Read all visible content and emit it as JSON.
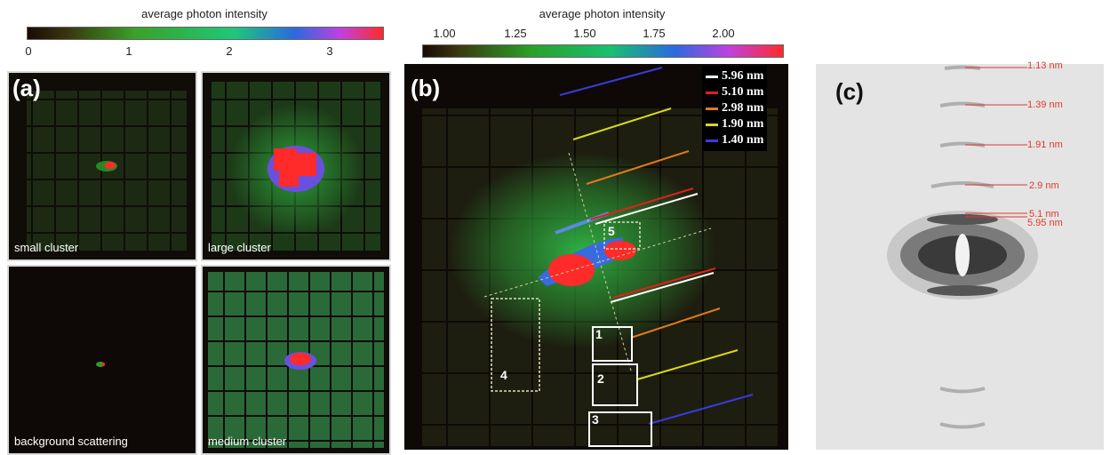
{
  "colorbar_a": {
    "title": "average photon intensity",
    "ticks": [
      {
        "label": "0",
        "value": 0
      },
      {
        "label": "1",
        "value": 1
      },
      {
        "label": "2",
        "value": 2
      },
      {
        "label": "3",
        "value": 3
      }
    ],
    "range": [
      0,
      3.6
    ]
  },
  "colorbar_b": {
    "title": "average photon intensity",
    "ticks": [
      {
        "label": "1.00",
        "value": 1.0
      },
      {
        "label": "1.25",
        "value": 1.25
      },
      {
        "label": "1.50",
        "value": 1.5
      },
      {
        "label": "1.75",
        "value": 1.75
      },
      {
        "label": "2.00",
        "value": 2.0
      }
    ],
    "range": [
      1.0,
      2.2
    ]
  },
  "panel_a": {
    "letter": "(a)",
    "labels": {
      "small": "small cluster",
      "large": "large cluster",
      "background": "background scattering",
      "medium": "medium cluster"
    }
  },
  "panel_b": {
    "letter": "(b)",
    "legend": [
      {
        "label": "5.96 nm",
        "color": "#ffffff"
      },
      {
        "label": "5.10 nm",
        "color": "#e0201a"
      },
      {
        "label": "2.98 nm",
        "color": "#e07a1e"
      },
      {
        "label": "1.90 nm",
        "color": "#d8d81e"
      },
      {
        "label": "1.40 nm",
        "color": "#3a3ae0"
      }
    ],
    "roi_labels": [
      "1",
      "2",
      "3",
      "4",
      "5"
    ]
  },
  "panel_c": {
    "letter": "(c)",
    "rings": [
      "1.13 nm",
      "1.39 nm",
      "1.91 nm",
      "2.9 nm",
      "5.1 nm",
      "5.95 nm"
    ]
  },
  "colors": {
    "colormap": [
      "#1a0a05",
      "#3a3a10",
      "#3aa028",
      "#1ec878",
      "#2a6ae0",
      "#c040e0",
      "#ff2a2a"
    ],
    "ring_label": "#e0392b"
  }
}
